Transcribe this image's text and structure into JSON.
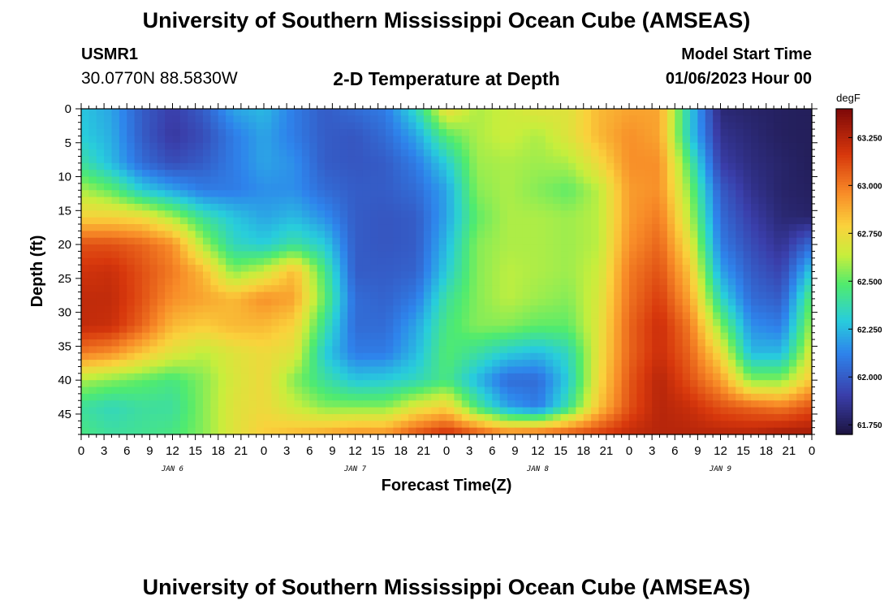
{
  "header": {
    "title": "University of Southern Mississippi Ocean Cube (AMSEAS)",
    "station_id": "USMR1",
    "station_coords": "30.0770N  88.5830W",
    "subtitle": "2-D Temperature at Depth",
    "model_start_label": "Model Start Time",
    "model_start_value": "01/06/2023 Hour 00"
  },
  "footer": {
    "title": "University of Southern Mississippi Ocean Cube (AMSEAS)"
  },
  "chart_data": {
    "type": "heatmap",
    "title": "2-D Temperature at Depth",
    "xlabel": "Forecast Time(Z)",
    "ylabel": "Depth (ft)",
    "x_range_hours": [
      0,
      96
    ],
    "x_tick_step_hours": 3,
    "x_tick_labels": [
      "0",
      "3",
      "6",
      "9",
      "12",
      "15",
      "18",
      "21",
      "0",
      "3",
      "6",
      "9",
      "12",
      "15",
      "18",
      "21",
      "0",
      "3",
      "6",
      "9",
      "12",
      "15",
      "18",
      "21",
      "0",
      "3",
      "6",
      "9",
      "12",
      "15",
      "18",
      "21",
      "0"
    ],
    "day_labels": [
      {
        "hour": 12,
        "label": "JAN 6"
      },
      {
        "hour": 36,
        "label": "JAN 7"
      },
      {
        "hour": 60,
        "label": "JAN 8"
      },
      {
        "hour": 84,
        "label": "JAN 9"
      }
    ],
    "y_range_ft": [
      0,
      48
    ],
    "y_ticks": [
      0,
      5,
      10,
      15,
      20,
      25,
      30,
      35,
      40,
      45
    ],
    "y_tick_labels": [
      "0",
      "5",
      "10",
      "15",
      "20",
      "25",
      "30",
      "35",
      "40",
      "45"
    ],
    "colorbar": {
      "unit": "degF",
      "range": [
        61.7,
        63.4
      ],
      "ticks": [
        61.75,
        62.0,
        62.25,
        62.5,
        62.75,
        63.0,
        63.25
      ],
      "tick_labels": [
        "61.750",
        "62.000",
        "62.250",
        "62.500",
        "62.750",
        "63.000",
        "63.250"
      ]
    },
    "grid_hours": [
      0,
      4,
      8,
      12,
      16,
      20,
      24,
      28,
      32,
      36,
      40,
      44,
      48,
      52,
      56,
      60,
      64,
      68,
      72,
      76,
      80,
      84,
      88,
      92,
      96
    ],
    "grid_depths_ft": [
      0,
      4,
      8,
      12,
      16,
      20,
      24,
      28,
      32,
      36,
      40,
      44,
      48
    ],
    "values_degF": [
      [
        62.28,
        62.2,
        62.0,
        61.9,
        62.0,
        62.2,
        62.25,
        62.1,
        62.0,
        62.05,
        62.1,
        62.35,
        62.75,
        62.6,
        62.65,
        62.7,
        62.7,
        62.85,
        62.9,
        62.9,
        62.3,
        61.8,
        61.78,
        61.76,
        61.75
      ],
      [
        62.3,
        62.22,
        62.0,
        61.88,
        61.95,
        62.1,
        62.2,
        62.1,
        62.0,
        61.98,
        62.05,
        62.2,
        62.48,
        62.6,
        62.65,
        62.6,
        62.7,
        62.85,
        62.95,
        62.9,
        62.3,
        61.85,
        61.8,
        61.76,
        61.75
      ],
      [
        62.4,
        62.25,
        62.05,
        61.95,
        62.0,
        62.1,
        62.2,
        62.15,
        62.0,
        61.98,
        62.0,
        62.1,
        62.3,
        62.58,
        62.6,
        62.58,
        62.6,
        62.75,
        62.95,
        62.95,
        62.45,
        61.9,
        61.82,
        61.78,
        61.75
      ],
      [
        62.6,
        62.5,
        62.3,
        62.2,
        62.1,
        62.1,
        62.15,
        62.15,
        62.05,
        62.0,
        62.0,
        62.05,
        62.2,
        62.55,
        62.6,
        62.55,
        62.5,
        62.62,
        62.92,
        62.95,
        62.55,
        62.0,
        61.85,
        61.78,
        61.76
      ],
      [
        62.78,
        62.78,
        62.75,
        62.6,
        62.4,
        62.28,
        62.2,
        62.25,
        62.15,
        62.0,
        61.98,
        62.0,
        62.2,
        62.5,
        62.6,
        62.6,
        62.58,
        62.62,
        62.92,
        63.0,
        62.62,
        62.05,
        61.9,
        61.8,
        61.78
      ],
      [
        63.1,
        63.1,
        63.05,
        62.95,
        62.6,
        62.35,
        62.3,
        62.4,
        62.3,
        62.0,
        61.98,
        62.0,
        62.25,
        62.55,
        62.6,
        62.6,
        62.58,
        62.62,
        62.95,
        63.05,
        62.72,
        62.1,
        61.95,
        61.85,
        62.05
      ],
      [
        63.18,
        63.2,
        63.1,
        63.0,
        62.85,
        62.55,
        62.65,
        62.85,
        62.45,
        62.0,
        62.0,
        62.02,
        62.3,
        62.55,
        62.62,
        62.6,
        62.58,
        62.65,
        63.0,
        63.1,
        62.82,
        62.2,
        62.0,
        61.92,
        62.3
      ],
      [
        63.22,
        63.22,
        63.1,
        62.95,
        62.9,
        62.85,
        62.95,
        62.9,
        62.5,
        62.05,
        62.02,
        62.1,
        62.4,
        62.55,
        62.62,
        62.58,
        62.55,
        62.68,
        63.02,
        63.15,
        62.9,
        62.35,
        62.05,
        62.0,
        62.5
      ],
      [
        63.22,
        63.2,
        63.05,
        62.85,
        62.8,
        62.85,
        62.85,
        62.78,
        62.4,
        62.05,
        62.05,
        62.2,
        62.45,
        62.55,
        62.55,
        62.5,
        62.5,
        62.7,
        63.05,
        63.2,
        63.0,
        62.55,
        62.15,
        62.1,
        62.6
      ],
      [
        63.0,
        62.95,
        62.82,
        62.7,
        62.62,
        62.7,
        62.75,
        62.7,
        62.3,
        62.1,
        62.1,
        62.25,
        62.48,
        62.4,
        62.3,
        62.25,
        62.35,
        62.72,
        63.05,
        63.2,
        63.05,
        62.75,
        62.25,
        62.25,
        62.7
      ],
      [
        62.6,
        62.55,
        62.5,
        62.45,
        62.55,
        62.68,
        62.75,
        62.55,
        62.4,
        62.28,
        62.3,
        62.35,
        62.45,
        62.25,
        62.05,
        62.05,
        62.3,
        62.75,
        63.08,
        63.25,
        63.1,
        62.92,
        62.55,
        62.55,
        62.82
      ],
      [
        62.4,
        62.35,
        62.4,
        62.4,
        62.55,
        62.7,
        62.75,
        62.65,
        62.55,
        62.55,
        62.55,
        62.7,
        62.78,
        62.45,
        62.2,
        62.1,
        62.4,
        62.82,
        63.1,
        63.25,
        63.2,
        63.1,
        63.05,
        63.0,
        63.1
      ],
      [
        62.45,
        62.4,
        62.42,
        62.45,
        62.55,
        62.7,
        62.8,
        62.85,
        62.9,
        62.95,
        62.95,
        63.1,
        63.2,
        63.1,
        63.0,
        63.05,
        63.1,
        63.15,
        63.22,
        63.25,
        63.25,
        63.25,
        63.25,
        63.3,
        63.3
      ]
    ]
  }
}
